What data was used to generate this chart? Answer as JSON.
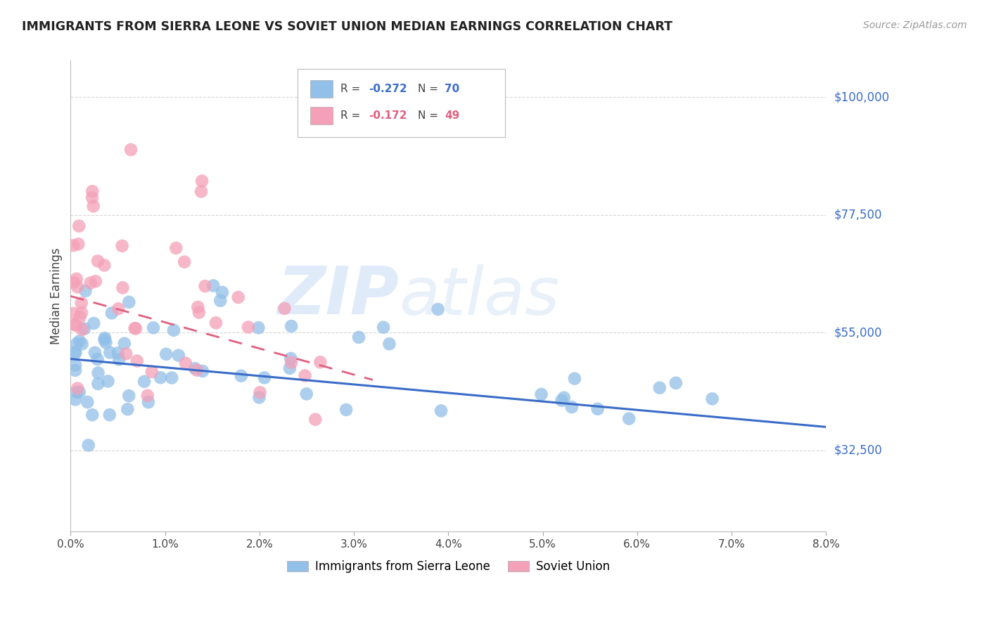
{
  "title": "IMMIGRANTS FROM SIERRA LEONE VS SOVIET UNION MEDIAN EARNINGS CORRELATION CHART",
  "source": "Source: ZipAtlas.com",
  "ylabel": "Median Earnings",
  "y_ticks": [
    32500,
    55000,
    77500,
    100000
  ],
  "y_tick_labels": [
    "$32,500",
    "$55,000",
    "$77,500",
    "$100,000"
  ],
  "x_min": 0.0,
  "x_max": 0.08,
  "y_min": 17000,
  "y_max": 107000,
  "sierra_leone_color": "#92C0E8",
  "soviet_union_color": "#F4A0B8",
  "sierra_leone_R": -0.272,
  "sierra_leone_N": 70,
  "soviet_union_R": -0.172,
  "soviet_union_N": 49,
  "legend_label_1": "Immigrants from Sierra Leone",
  "legend_label_2": "Soviet Union",
  "trend_line_blue": "#3A6CC8",
  "trend_line_pink": "#E06080",
  "watermark_zip": "ZIP",
  "watermark_atlas": "atlas",
  "title_color": "#222222",
  "axis_label_color": "#3A6CC8",
  "grid_color": "#CCCCCC",
  "background_color": "#FFFFFF",
  "sl_trend_x0": 0.0,
  "sl_trend_y0": 50000,
  "sl_trend_x1": 0.08,
  "sl_trend_y1": 37000,
  "su_trend_x0": 0.0,
  "su_trend_y0": 62000,
  "su_trend_x1": 0.032,
  "su_trend_y1": 46000,
  "x_tick_positions": [
    0.0,
    0.01,
    0.02,
    0.03,
    0.04,
    0.05,
    0.06,
    0.07,
    0.08
  ],
  "x_tick_labels": [
    "0.0%",
    "1.0%",
    "2.0%",
    "3.0%",
    "4.0%",
    "5.0%",
    "6.0%",
    "7.0%",
    "8.0%"
  ]
}
